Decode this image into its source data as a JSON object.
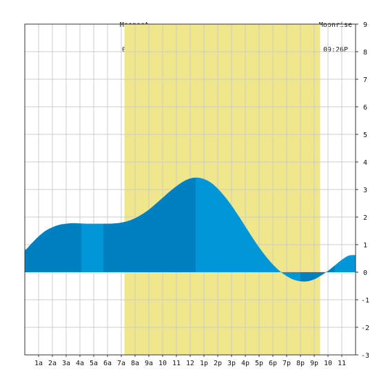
{
  "moon": {
    "moonset_title": "Moonset",
    "moonset_time": "07:14A",
    "moonrise_title": "Moonrise",
    "moonrise_time": "09:26P"
  },
  "chart_data": {
    "type": "area",
    "title": "",
    "xlabel": "",
    "ylabel": "",
    "x_range_hours": [
      0,
      24
    ],
    "ylim": [
      -3,
      9
    ],
    "y_ticks": [
      -3,
      -2,
      -1,
      0,
      1,
      2,
      3,
      4,
      5,
      6,
      7,
      8,
      9
    ],
    "x_tick_labels": [
      "1a",
      "2a",
      "3a",
      "4a",
      "5a",
      "6a",
      "7a",
      "8a",
      "9a",
      "10",
      "11",
      "12",
      "1p",
      "2p",
      "3p",
      "4p",
      "5p",
      "6p",
      "7p",
      "8p",
      "9p",
      "10",
      "11"
    ],
    "grid": true,
    "moon_up_band": {
      "start_hour": 7.23,
      "end_hour": 21.43,
      "color": "#f0e68c"
    },
    "colors": {
      "dark": "#0080c0",
      "light": "#0096d8",
      "grid": "#cccccc",
      "band": "#f0e68c"
    },
    "shade_segments": [
      {
        "from_hour": 0,
        "to_hour": 4.1,
        "tone": "dark"
      },
      {
        "from_hour": 4.1,
        "to_hour": 5.7,
        "tone": "light"
      },
      {
        "from_hour": 5.7,
        "to_hour": 12.4,
        "tone": "dark"
      },
      {
        "from_hour": 12.4,
        "to_hour": 20.0,
        "tone": "light"
      },
      {
        "from_hour": 20.0,
        "to_hour": 22.5,
        "tone": "dark"
      },
      {
        "from_hour": 22.5,
        "to_hour": 24,
        "tone": "light"
      }
    ],
    "series": [
      {
        "values": [
          [
            0,
            0.8
          ],
          [
            0.5,
            1.05
          ],
          [
            1,
            1.3
          ],
          [
            1.5,
            1.5
          ],
          [
            2,
            1.63
          ],
          [
            2.5,
            1.72
          ],
          [
            3,
            1.76
          ],
          [
            3.5,
            1.78
          ],
          [
            4,
            1.77
          ],
          [
            4.5,
            1.76
          ],
          [
            5,
            1.76
          ],
          [
            5.5,
            1.76
          ],
          [
            6,
            1.76
          ],
          [
            6.5,
            1.77
          ],
          [
            7,
            1.8
          ],
          [
            7.5,
            1.86
          ],
          [
            8,
            1.96
          ],
          [
            8.5,
            2.1
          ],
          [
            9,
            2.27
          ],
          [
            9.5,
            2.48
          ],
          [
            10,
            2.7
          ],
          [
            10.5,
            2.92
          ],
          [
            11,
            3.12
          ],
          [
            11.5,
            3.29
          ],
          [
            12,
            3.4
          ],
          [
            12.5,
            3.43
          ],
          [
            13,
            3.38
          ],
          [
            13.5,
            3.25
          ],
          [
            14,
            3.03
          ],
          [
            14.5,
            2.75
          ],
          [
            15,
            2.42
          ],
          [
            15.5,
            2.05
          ],
          [
            16,
            1.66
          ],
          [
            16.5,
            1.27
          ],
          [
            17,
            0.9
          ],
          [
            17.5,
            0.57
          ],
          [
            18,
            0.28
          ],
          [
            18.5,
            0.04
          ],
          [
            19,
            -0.14
          ],
          [
            19.5,
            -0.27
          ],
          [
            20,
            -0.33
          ],
          [
            20.5,
            -0.33
          ],
          [
            21,
            -0.26
          ],
          [
            21.5,
            -0.12
          ],
          [
            22,
            0.05
          ],
          [
            22.5,
            0.25
          ],
          [
            23,
            0.45
          ],
          [
            23.5,
            0.6
          ],
          [
            24,
            0.62
          ]
        ]
      }
    ]
  }
}
